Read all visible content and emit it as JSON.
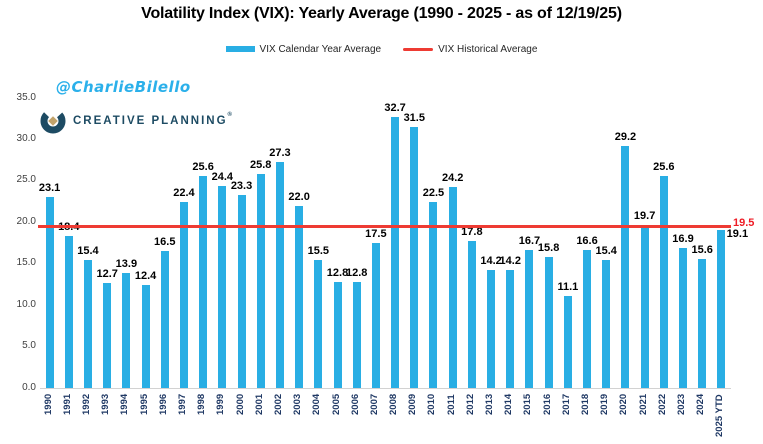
{
  "title": "Volatility Index (VIX): Yearly Average (1990 - 2025 - as of 12/19/25)",
  "watermark": "@CharlieBilello",
  "logo": {
    "text": "CREATIVE PLANNING",
    "mark": "®"
  },
  "legend": {
    "bar_label": "VIX Calendar Year Average",
    "line_label": "VIX Historical Average"
  },
  "colors": {
    "bar": "#29AEE4",
    "line": "#EE3B33",
    "line_label": "#EE1C25",
    "x_axis_label": "#1F3864",
    "y_axis_label": "#404040",
    "logo_navy": "#1D4B63",
    "logo_gold": "#C2A36B",
    "watermark": "#2BB0EA"
  },
  "chart_data": {
    "type": "bar",
    "title": "Volatility Index (VIX): Yearly Average (1990 - 2025 - as of 12/19/25)",
    "categories": [
      "1990",
      "1991",
      "1992",
      "1993",
      "1994",
      "1995",
      "1996",
      "1997",
      "1998",
      "1999",
      "2000",
      "2001",
      "2002",
      "2003",
      "2004",
      "2005",
      "2006",
      "2007",
      "2008",
      "2009",
      "2010",
      "2011",
      "2012",
      "2013",
      "2014",
      "2015",
      "2016",
      "2017",
      "2018",
      "2019",
      "2020",
      "2021",
      "2022",
      "2023",
      "2024",
      "2025 YTD"
    ],
    "series": [
      {
        "name": "VIX Calendar Year Average",
        "values": [
          23.1,
          18.4,
          15.4,
          12.7,
          13.9,
          12.4,
          16.5,
          22.4,
          25.6,
          24.4,
          23.3,
          25.8,
          27.3,
          22.0,
          15.5,
          12.8,
          12.8,
          17.5,
          32.7,
          31.5,
          22.5,
          24.2,
          17.8,
          14.2,
          14.2,
          16.7,
          15.8,
          11.1,
          16.6,
          15.4,
          29.2,
          19.7,
          25.6,
          16.9,
          15.6,
          19.1
        ]
      }
    ],
    "historical_average": {
      "name": "VIX Historical Average",
      "value": 19.5,
      "label": "19.5"
    },
    "ylim": [
      0,
      35
    ],
    "ytick_labels": [
      "0.0",
      "5.0",
      "10.0",
      "15.0",
      "20.0",
      "25.0",
      "30.0",
      "35.0"
    ],
    "grid": false,
    "legend_position": "top",
    "value_labels": "above bars, one decimal",
    "x_tick_rotation": 90
  }
}
